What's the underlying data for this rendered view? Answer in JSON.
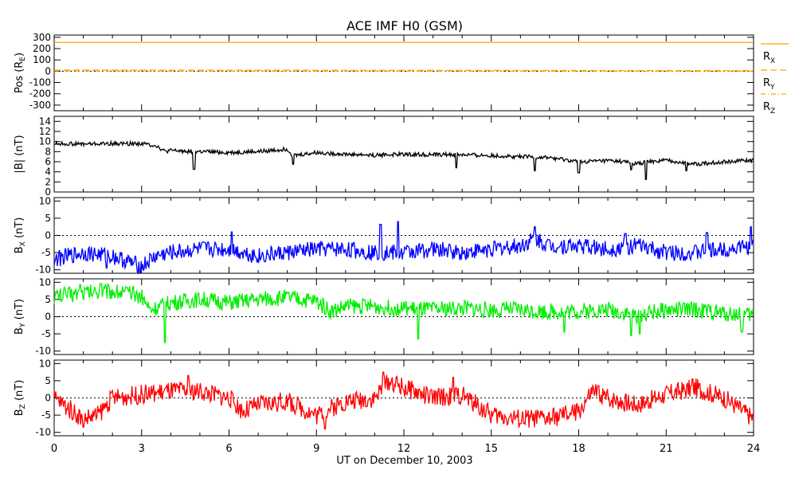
{
  "chart_data": {
    "type": "line",
    "title": "ACE IMF H0 (GSM)",
    "xlabel": "UT on December 10, 2003",
    "xlim": [
      0,
      24
    ],
    "x_ticks": [
      "0",
      "3",
      "6",
      "9",
      "12",
      "15",
      "18",
      "21",
      "24"
    ],
    "panels": [
      {
        "id": "pos",
        "ylabel": "Pos (R",
        "ylabel_sub": "E",
        "ylabel_tail": ")",
        "ylim": [
          -350,
          320
        ],
        "y_ticks": [
          300,
          200,
          100,
          0,
          -100,
          -200,
          -300
        ],
        "y_tick_labels": [
          "300",
          "200",
          "100",
          "0",
          "-100",
          "-200",
          "-300"
        ],
        "zero_line": true,
        "series": [
          {
            "name": "RX",
            "label_main": "R",
            "label_sub": "X",
            "color": "#ffa500",
            "dash": "none",
            "x": [
              0,
              6,
              12,
              18,
              24
            ],
            "values": [
              255,
              255,
              255,
              255,
              255
            ]
          },
          {
            "name": "RY",
            "label_main": "R",
            "label_sub": "Y",
            "color": "#ffa500",
            "dash": "8 4",
            "x": [
              0,
              6,
              12,
              18,
              24
            ],
            "values": [
              10,
              9,
              8,
              6,
              5
            ]
          },
          {
            "name": "RZ",
            "label_main": "R",
            "label_sub": "Z",
            "color": "#ffa500",
            "dash": "6 3 1 3",
            "x": [
              0,
              6,
              12,
              18,
              24
            ],
            "values": [
              3,
              2,
              1,
              0,
              -1
            ]
          }
        ]
      },
      {
        "id": "btot",
        "ylabel": "|B| (nT)",
        "ylim": [
          0,
          15
        ],
        "y_ticks": [
          14,
          12,
          10,
          8,
          6,
          4,
          2,
          0
        ],
        "y_tick_labels": [
          "14",
          "12",
          "10",
          "8",
          "6",
          "4",
          "2",
          "0"
        ],
        "zero_line": false,
        "series": [
          {
            "name": "|B|",
            "color": "#000000",
            "x": [
              0,
              1,
              2,
              3,
              3.5,
              3.8,
              4,
              5,
              6,
              7,
              8,
              8.2,
              9,
              10,
              11,
              12,
              13,
              14,
              15,
              16,
              17,
              18,
              19,
              19.5,
              20,
              20.2,
              21,
              22,
              23,
              24
            ],
            "values": [
              9.6,
              9.5,
              9.6,
              9.6,
              9.2,
              8.0,
              8.2,
              8.0,
              7.8,
              8.0,
              8.5,
              7.2,
              7.8,
              7.5,
              7.3,
              7.5,
              7.4,
              7.4,
              7.2,
              7.0,
              6.8,
              6.0,
              6.2,
              6.0,
              5.6,
              5.8,
              6.3,
              5.5,
              6.0,
              6.3
            ],
            "noise": 0.4,
            "spikes": [
              [
                4.8,
                4.5
              ],
              [
                8.2,
                5.5
              ],
              [
                13.8,
                4.8
              ],
              [
                16.5,
                4.2
              ],
              [
                18.0,
                3.8
              ],
              [
                19.8,
                4.4
              ],
              [
                20.3,
                2.5
              ],
              [
                21.7,
                4.2
              ]
            ]
          }
        ]
      },
      {
        "id": "bx",
        "ylabel": "B",
        "ylabel_sub": "X",
        "ylabel_tail": " (nT)",
        "ylim": [
          -11,
          11
        ],
        "y_ticks": [
          10,
          5,
          0,
          -5,
          -10
        ],
        "y_tick_labels": [
          "10",
          "5",
          "0",
          "-5",
          "-10"
        ],
        "zero_line": true,
        "series": [
          {
            "name": "BX",
            "color": "#0000ff",
            "x": [
              0,
              1,
              2,
              3,
              3.5,
              4,
              5,
              6,
              7,
              8,
              9,
              10,
              11,
              12,
              13,
              14,
              15,
              16,
              16.5,
              17,
              18,
              19,
              20,
              21,
              22,
              23,
              24
            ],
            "values": [
              -7,
              -5,
              -6,
              -9,
              -6,
              -5,
              -4,
              -4,
              -6,
              -5,
              -4,
              -4,
              -5,
              -5,
              -4,
              -5,
              -4,
              -3,
              -1,
              -3,
              -3,
              -4,
              -3,
              -5,
              -5,
              -4,
              -3
            ],
            "noise": 2.4,
            "spikes": [
              [
                1.8,
                -9.5
              ],
              [
                6.1,
                1.0
              ],
              [
                11.2,
                3.2
              ],
              [
                11.8,
                4.0
              ],
              [
                16.5,
                2.5
              ],
              [
                19.6,
                0.5
              ],
              [
                22.4,
                0.8
              ],
              [
                23.9,
                2.5
              ]
            ]
          }
        ]
      },
      {
        "id": "by",
        "ylabel": "B",
        "ylabel_sub": "Y",
        "ylabel_tail": " (nT)",
        "ylim": [
          -11,
          11
        ],
        "y_ticks": [
          10,
          5,
          0,
          -5,
          -10
        ],
        "y_tick_labels": [
          "10",
          "5",
          "0",
          "-5",
          "-10"
        ],
        "zero_line": true,
        "series": [
          {
            "name": "BY",
            "color": "#00ee00",
            "x": [
              0,
              1,
              2,
              3,
              3.3,
              4,
              5,
              6,
              7,
              8,
              9,
              9.5,
              10,
              11,
              12,
              13,
              14,
              15,
              16,
              17,
              18,
              19,
              20,
              21,
              22,
              23,
              24
            ],
            "values": [
              6,
              7,
              7.5,
              6,
              2,
              4,
              5,
              4,
              5,
              5.5,
              4.5,
              1.5,
              3,
              3,
              2.5,
              2,
              2.5,
              2,
              2,
              1.5,
              1.5,
              2,
              0.5,
              2,
              2,
              1,
              0.5
            ],
            "noise": 2.4,
            "spikes": [
              [
                0.9,
                9.3
              ],
              [
                1.6,
                9.6
              ],
              [
                3.8,
                -7.5
              ],
              [
                12.5,
                -6.5
              ],
              [
                17.5,
                -4.5
              ],
              [
                19.8,
                -5.5
              ],
              [
                20.1,
                -5.0
              ],
              [
                23.6,
                -4.5
              ]
            ]
          }
        ]
      },
      {
        "id": "bz",
        "ylabel": "B",
        "ylabel_sub": "Z",
        "ylabel_tail": " (nT)",
        "ylim": [
          -11,
          11
        ],
        "y_ticks": [
          10,
          5,
          0,
          -5,
          -10
        ],
        "y_tick_labels": [
          "10",
          "5",
          "0",
          "-5",
          "-10"
        ],
        "zero_line": true,
        "series": [
          {
            "name": "BZ",
            "color": "#ff0000",
            "x": [
              0,
              0.5,
              1,
              1.5,
              2,
              3,
              4,
              5,
              6,
              6.5,
              7,
              8,
              9,
              9.5,
              10,
              11,
              11.5,
              12,
              13,
              14,
              15,
              16,
              17,
              18,
              18.5,
              19,
              20,
              21,
              22,
              23,
              24
            ],
            "values": [
              0,
              -3,
              -6,
              -5,
              0,
              1,
              2,
              2,
              0,
              -4,
              -2,
              -1,
              -5,
              -3,
              -1,
              0,
              5,
              3,
              0,
              1,
              -5,
              -6,
              -6,
              -4,
              2,
              0,
              -2,
              1,
              3,
              0,
              -6
            ],
            "noise": 2.8,
            "spikes": [
              [
                1.0,
                -8.5
              ],
              [
                4.6,
                6.5
              ],
              [
                9.3,
                -9.0
              ],
              [
                11.3,
                7.5
              ],
              [
                13.7,
                6.0
              ],
              [
                16.0,
                -7.5
              ],
              [
                21.9,
                5.5
              ]
            ]
          }
        ]
      }
    ]
  }
}
